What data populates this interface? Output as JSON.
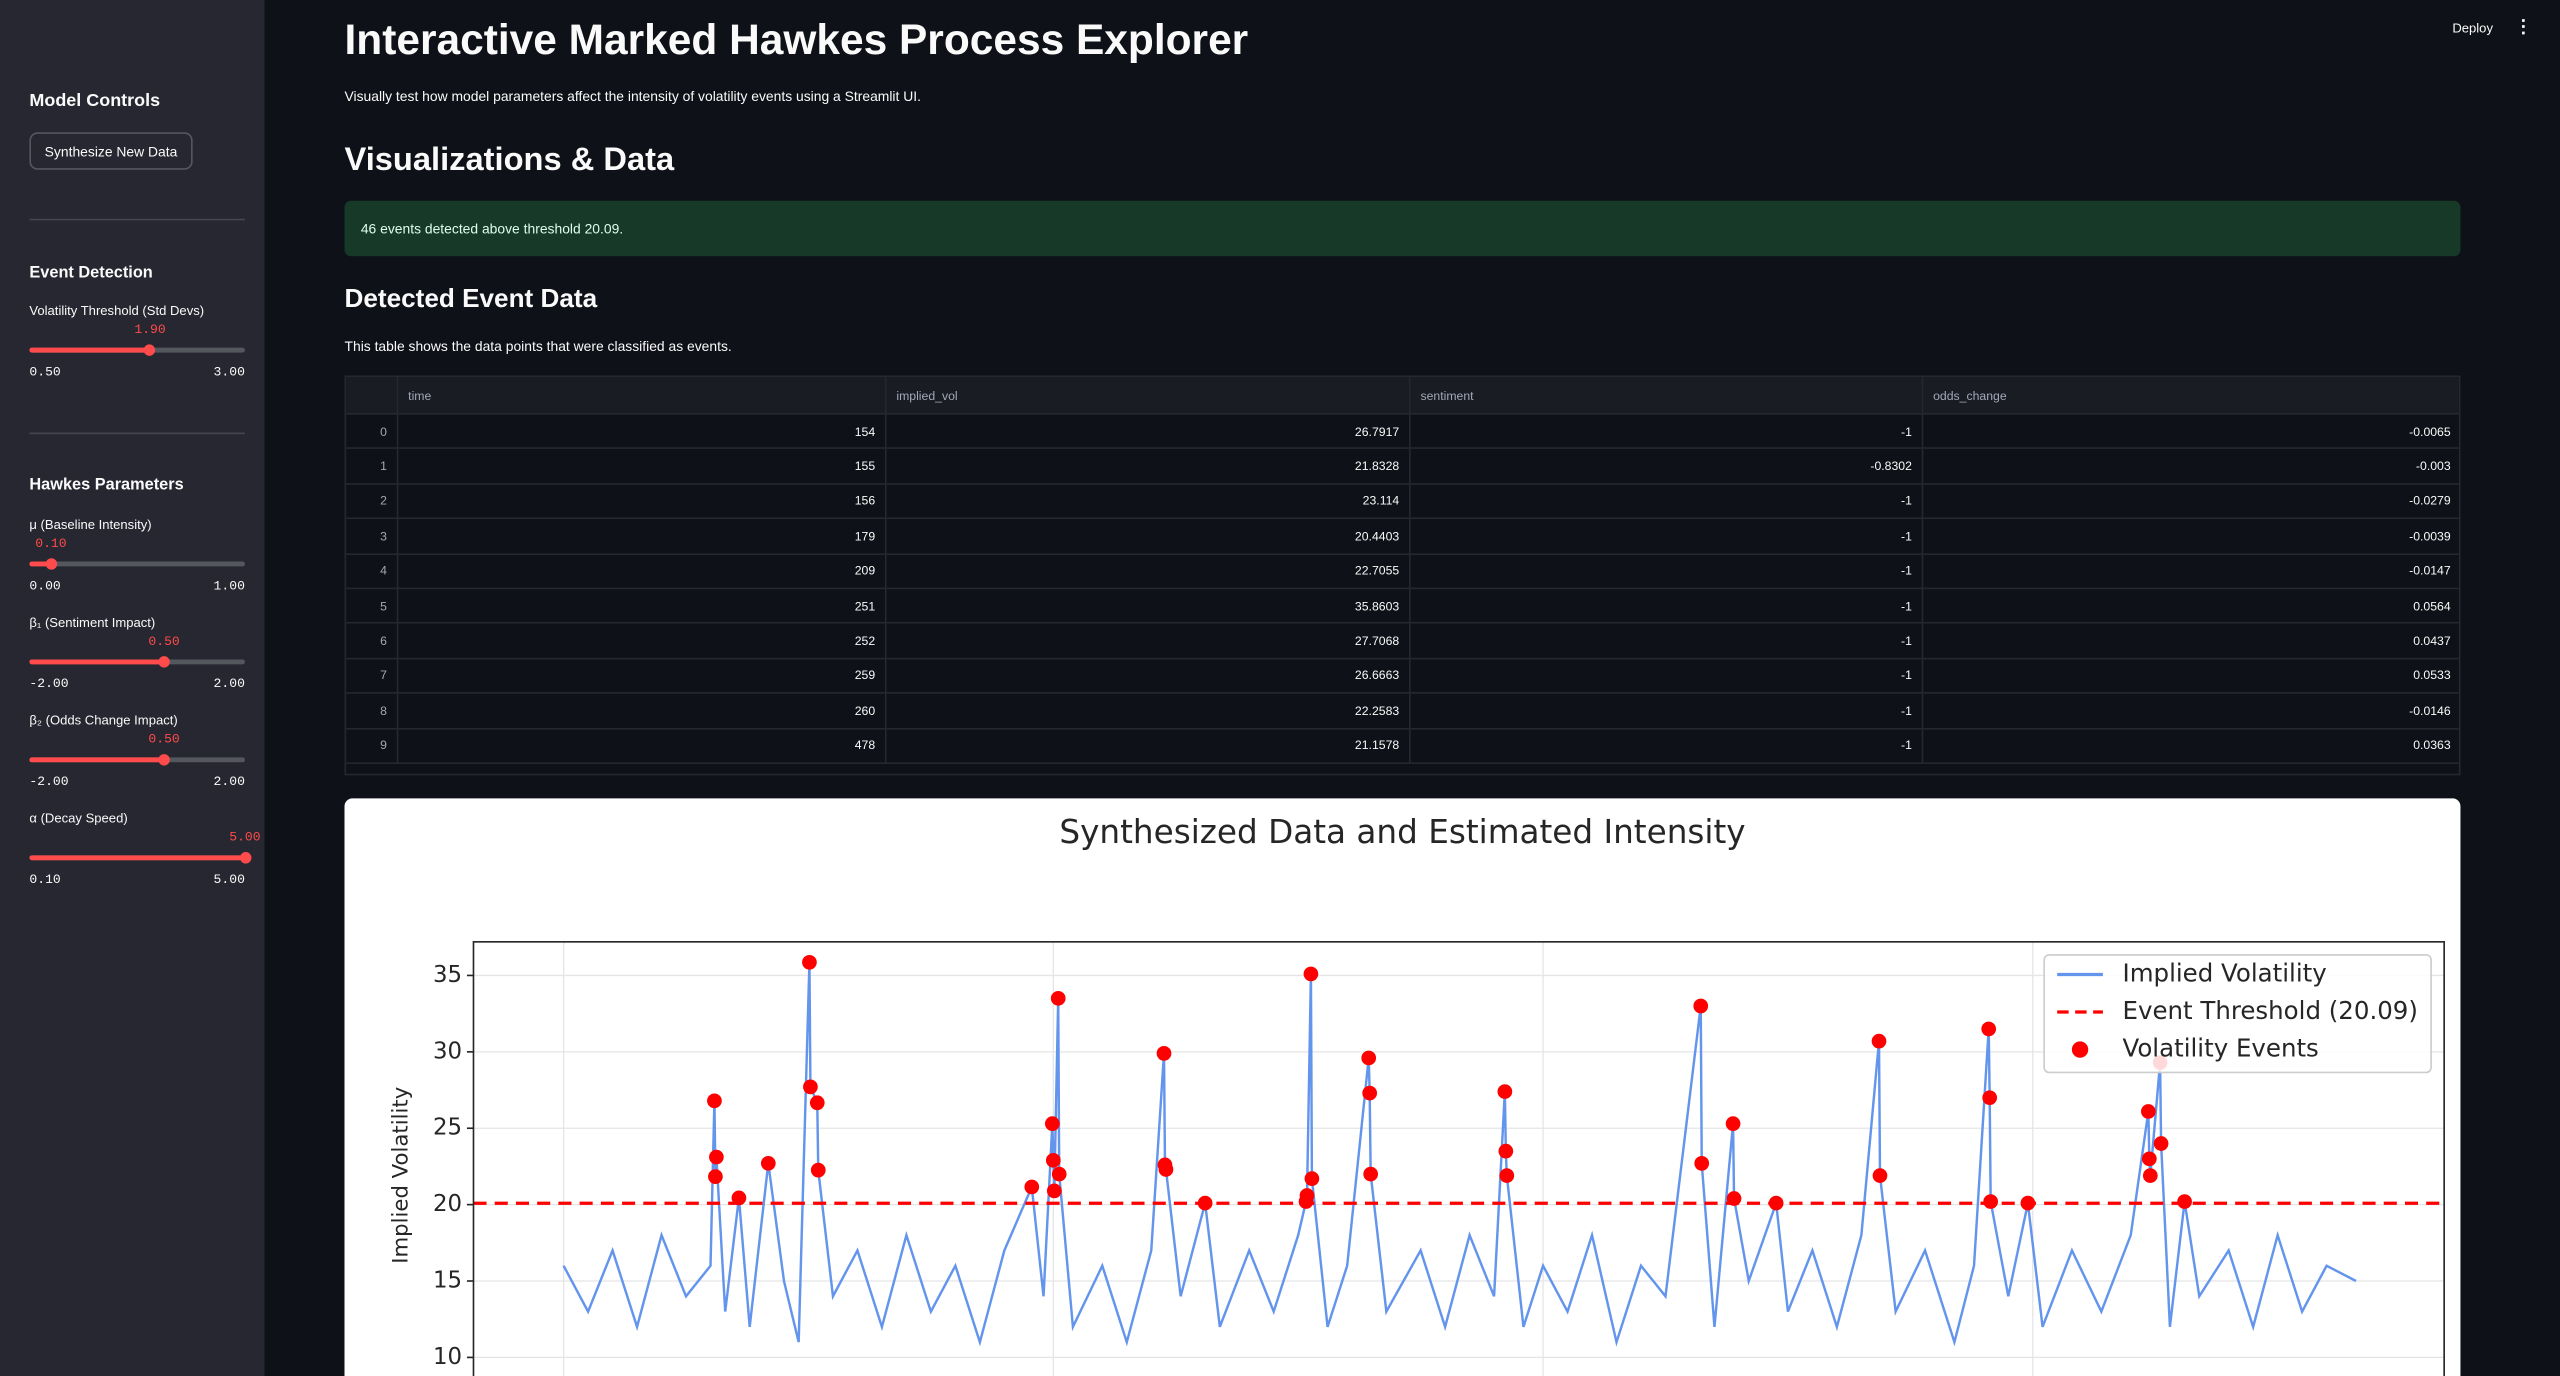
{
  "header": {
    "title": "Interactive Marked Hawkes Process Explorer",
    "subtitle": "Visually test how model parameters affect the intensity of volatility events using a Streamlit UI.",
    "deploy": "Deploy"
  },
  "sidebar": {
    "heading": "Model Controls",
    "button": "Synthesize New Data",
    "sections": [
      {
        "heading": "Event Detection",
        "sliders": [
          {
            "label": "Volatility Threshold (Std Devs)",
            "value": {
              "value": 1.9,
              "label": "1.90"
            },
            "min": {
              "value": 0.5,
              "label": "0.50"
            },
            "max": {
              "value": 3,
              "label": "3.00"
            }
          }
        ]
      },
      {
        "heading": "Hawkes Parameters",
        "sliders": [
          {
            "label": "μ (Baseline Intensity)",
            "value": {
              "value": 0.1,
              "label": "0.10"
            },
            "min": {
              "value": 0,
              "label": "0.00"
            },
            "max": {
              "value": 1,
              "label": "1.00"
            }
          },
          {
            "label": "β₁ (Sentiment Impact)",
            "value": {
              "value": 0.5,
              "label": "0.50"
            },
            "min": {
              "value": -2,
              "label": "-2.00"
            },
            "max": {
              "value": 2,
              "label": "2.00"
            }
          },
          {
            "label": "β₂ (Odds Change Impact)",
            "value": {
              "value": 0.5,
              "label": "0.50"
            },
            "min": {
              "value": -2,
              "label": "-2.00"
            },
            "max": {
              "value": 2,
              "label": "2.00"
            }
          },
          {
            "label": "α (Decay Speed)",
            "value": {
              "value": 5,
              "label": "5.00"
            },
            "min": {
              "value": 0.1,
              "label": "0.10"
            },
            "max": {
              "value": 5,
              "label": "5.00"
            }
          }
        ]
      }
    ]
  },
  "main": {
    "section": "Visualizations & Data",
    "alert": "46 events detected above threshold 20.09.",
    "table_heading": "Detected Event Data",
    "table_caption": "This table shows the data points that were classified as events."
  },
  "table": {
    "columns": [
      "time",
      "implied_vol",
      "sentiment",
      "odds_change"
    ],
    "rows": [
      [
        0,
        154,
        26.7917,
        -1,
        -0.0065
      ],
      [
        1,
        155,
        21.8328,
        -0.8302,
        -0.003
      ],
      [
        2,
        156,
        23.114,
        -1,
        -0.0279
      ],
      [
        3,
        179,
        20.4403,
        -1,
        -0.0039
      ],
      [
        4,
        209,
        22.7055,
        -1,
        -0.0147
      ],
      [
        5,
        251,
        35.8603,
        -1,
        0.0564
      ],
      [
        6,
        252,
        27.7068,
        -1,
        0.0437
      ],
      [
        7,
        259,
        26.6663,
        -1,
        0.0533
      ],
      [
        8,
        260,
        22.2583,
        -1,
        -0.0146
      ],
      [
        9,
        478,
        21.1578,
        -1,
        0.0363
      ]
    ]
  },
  "chart_data": {
    "type": "line",
    "title": "Synthesized Data and Estimated Intensity",
    "y_label": "Implied Volatility",
    "xlim": [
      -92,
      1920
    ],
    "xticks": [
      0,
      500,
      1000,
      1500
    ],
    "ylim": [
      8.5,
      37.2
    ],
    "yticks": [
      10,
      15,
      20,
      25,
      30,
      35
    ],
    "grid": true,
    "legend": "upper right",
    "series": [
      {
        "name": "Implied Volatility",
        "type": "line",
        "color": "#6495ed",
        "x": [
          0,
          25,
          50,
          75,
          100,
          125,
          150,
          154,
          155,
          156,
          165,
          179,
          190,
          209,
          225,
          240,
          251,
          252,
          259,
          260,
          275,
          300,
          325,
          350,
          375,
          400,
          425,
          450,
          478,
          490,
          499,
          500,
          501,
          505,
          506,
          520,
          550,
          575,
          600,
          613,
          614,
          615,
          630,
          655,
          670,
          700,
          725,
          750,
          758,
          759,
          763,
          764,
          780,
          800,
          822,
          823,
          824,
          840,
          875,
          900,
          925,
          950,
          961,
          962,
          963,
          980,
          1000,
          1025,
          1050,
          1075,
          1100,
          1125,
          1161,
          1162,
          1175,
          1194,
          1195,
          1210,
          1238,
          1250,
          1275,
          1300,
          1325,
          1343,
          1344,
          1360,
          1390,
          1420,
          1440,
          1455,
          1456,
          1457,
          1475,
          1495,
          1510,
          1540,
          1570,
          1600,
          1618,
          1619,
          1620,
          1630,
          1631,
          1640,
          1655,
          1670,
          1700,
          1725,
          1750,
          1775,
          1800,
          1830
        ],
        "values": [
          16,
          13,
          17,
          12,
          18,
          14,
          16,
          26.7917,
          21.8328,
          23.114,
          13,
          20.4403,
          12,
          22.7055,
          15,
          11,
          35.8603,
          27.7068,
          26.6663,
          22.2583,
          14,
          17,
          12,
          18,
          13,
          16,
          11,
          17,
          21.1578,
          14,
          25.3,
          22.9,
          20.9,
          33.5,
          22,
          12,
          16,
          11,
          17,
          29.9,
          22.6,
          22.3,
          14,
          20.1,
          12,
          17,
          13,
          18,
          20.2,
          20.6,
          35.1,
          21.7,
          12,
          16,
          29.6,
          27.3,
          22,
          13,
          17,
          12,
          18,
          14,
          27.4,
          23.5,
          21.9,
          12,
          16,
          13,
          18,
          11,
          16,
          14,
          33,
          22.7,
          12,
          25.3,
          20.4,
          15,
          20.1,
          13,
          17,
          12,
          18,
          30.7,
          21.9,
          13,
          17,
          11,
          16,
          31.5,
          27,
          20.2,
          14,
          20.1,
          12,
          17,
          13,
          18,
          26.1,
          23,
          21.9,
          29.3,
          24,
          12,
          20.2,
          14,
          17,
          12,
          18,
          13,
          16,
          15
        ]
      },
      {
        "name": "Volatility Events",
        "type": "scatter",
        "color": "#ff0000",
        "x": [
          154,
          155,
          156,
          179,
          209,
          251,
          252,
          259,
          260,
          478,
          499,
          500,
          501,
          505,
          506,
          613,
          614,
          615,
          655,
          758,
          759,
          763,
          764,
          822,
          823,
          824,
          961,
          962,
          963,
          1161,
          1162,
          1194,
          1195,
          1238,
          1343,
          1344,
          1455,
          1456,
          1457,
          1495,
          1618,
          1619,
          1620,
          1630,
          1631,
          1655
        ],
        "values": [
          26.7917,
          21.8328,
          23.114,
          20.4403,
          22.7055,
          35.8603,
          27.7068,
          26.6663,
          22.2583,
          21.1578,
          25.3,
          22.9,
          20.9,
          33.5,
          22,
          29.9,
          22.6,
          22.3,
          20.1,
          20.2,
          20.6,
          35.1,
          21.7,
          29.6,
          27.3,
          22,
          27.4,
          23.5,
          21.9,
          33,
          22.7,
          25.3,
          20.4,
          20.1,
          30.7,
          21.9,
          31.5,
          27,
          20.2,
          20.1,
          26.1,
          23,
          21.9,
          29.3,
          24,
          20.2
        ]
      }
    ],
    "threshold": {
      "name": "Event Threshold (20.09)",
      "value": 20.09,
      "color": "#ff0000"
    }
  }
}
